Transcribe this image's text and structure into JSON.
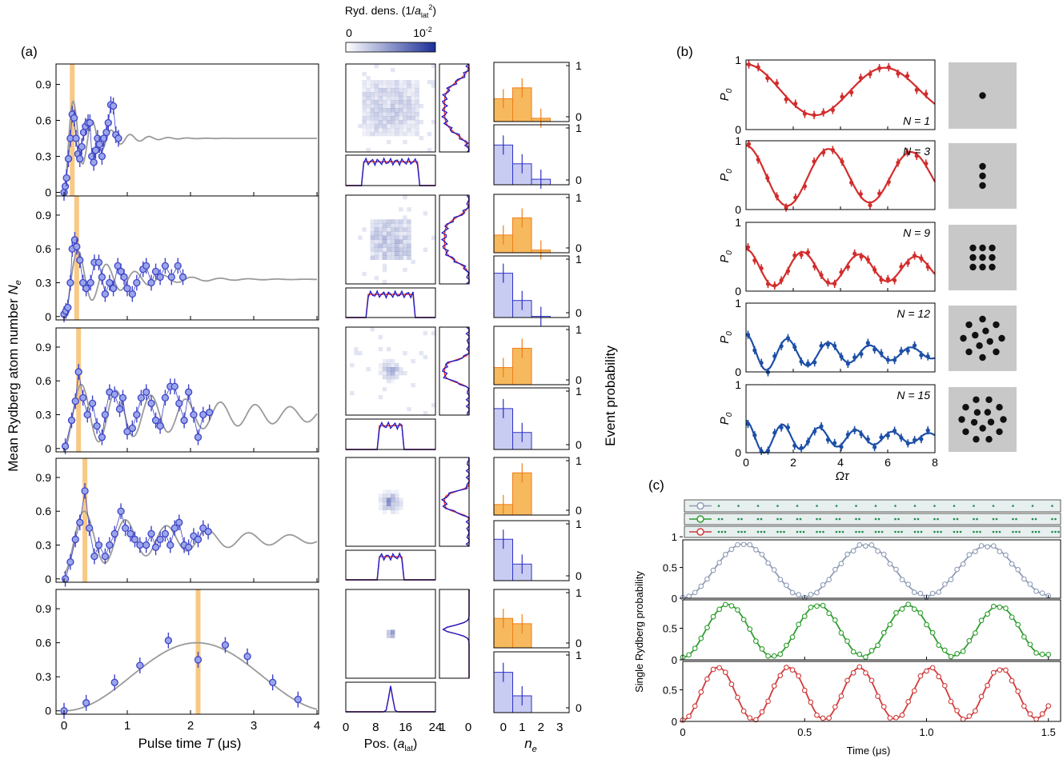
{
  "labels": {
    "panel_a": "(a)",
    "panel_b": "(b)",
    "panel_c": "(c)",
    "a_ylabel_main": "Mean Rydberg atom number ",
    "a_ylabel_sym": "N",
    "a_ylabel_sub": "e",
    "a_xlabel_main": "Pulse time ",
    "a_xlabel_sym": "T",
    "a_xlabel_unit": " (μs)",
    "colorbar_title": "Ryd. dens. (1/",
    "colorbar_title_sym": "a",
    "colorbar_title_sub": "lat",
    "colorbar_title_sup": "2",
    "colorbar_title_end": ")",
    "colorbar_min": "0",
    "colorbar_max_base": "10",
    "colorbar_max_exp": "-2",
    "pos_label": "Pos. (",
    "pos_label_sym": "a",
    "pos_label_sub": "lat",
    "pos_label_end": ")",
    "ne_label": "n",
    "ne_label_sub": "e",
    "event_prob_label": "Event probability",
    "b_ylabel": "P",
    "b_ylabel_sub": "0",
    "b_xlabel": "Ωτ",
    "c_ylabel": "Single Rydberg probability",
    "c_xlabel": "Time (μs)"
  },
  "colors": {
    "blue_points": "#3f44c8",
    "marker_fill": "#9aa6ea",
    "gray_curve": "#9a9a9a",
    "orange_band": "#f7c070",
    "orange_bar": "#f6b95e",
    "orange_edge": "#f07e16",
    "blue_bar": "#c8cbf2",
    "blue_bar_edge": "#3032c8",
    "red_line": "#ef2d23",
    "blue_line": "#2020c8",
    "b_red": "#d32c2c",
    "b_blue": "#1d4fa6",
    "c_gray": "#8f9db6",
    "c_green": "#2e9e2e",
    "c_red": "#d13a3a",
    "tile_gray": "#c8c8c8"
  },
  "chart_data": [
    {
      "type": "scatter",
      "panel": "a-1",
      "xlim": [
        0,
        4
      ],
      "ylim": [
        -0.03,
        1.07
      ],
      "xticks": [
        0,
        1,
        2,
        3,
        4
      ],
      "yticks": [
        0,
        0.3,
        0.6,
        0.9
      ],
      "ytick_labels": [
        "0",
        "0.3",
        "0.6",
        "0.9"
      ],
      "highlight_time": 0.13,
      "x": [
        0.0,
        0.02,
        0.04,
        0.07,
        0.1,
        0.13,
        0.16,
        0.19,
        0.22,
        0.25,
        0.28,
        0.31,
        0.34,
        0.38,
        0.41,
        0.44,
        0.47,
        0.5,
        0.53,
        0.56,
        0.6,
        0.63,
        0.67,
        0.7,
        0.74,
        0.78,
        0.82,
        0.86
      ],
      "y": [
        0.0,
        0.05,
        0.12,
        0.28,
        0.45,
        0.65,
        0.62,
        0.45,
        0.32,
        0.28,
        0.38,
        0.5,
        0.55,
        0.58,
        0.58,
        0.3,
        0.25,
        0.35,
        0.45,
        0.4,
        0.3,
        0.45,
        0.5,
        0.58,
        0.73,
        0.72,
        0.48,
        0.45
      ],
      "yerr": 0.07,
      "curve": {
        "baseline": 0.45,
        "amplitude": 0.45,
        "period": 0.3,
        "decay": 0.4,
        "start_slope": true
      }
    },
    {
      "type": "scatter",
      "panel": "a-2",
      "xlim": [
        0,
        4
      ],
      "ylim": [
        -0.03,
        1.07
      ],
      "xticks": [
        0,
        1,
        2,
        3,
        4
      ],
      "yticks": [
        0,
        0.3,
        0.6,
        0.9
      ],
      "ytick_labels": [
        "0",
        "0.3",
        "0.6",
        "0.9"
      ],
      "highlight_time": 0.2,
      "x": [
        0.0,
        0.03,
        0.06,
        0.1,
        0.13,
        0.17,
        0.2,
        0.25,
        0.3,
        0.35,
        0.42,
        0.48,
        0.55,
        0.6,
        0.65,
        0.72,
        0.78,
        0.85,
        0.9,
        0.95,
        1.0,
        1.08,
        1.15,
        1.25,
        1.3,
        1.38,
        1.45,
        1.52,
        1.6,
        1.7,
        1.8,
        1.88
      ],
      "y": [
        0.02,
        0.05,
        0.08,
        0.3,
        0.6,
        0.68,
        0.62,
        0.5,
        0.3,
        0.25,
        0.3,
        0.48,
        0.48,
        0.35,
        0.2,
        0.3,
        0.25,
        0.45,
        0.4,
        0.35,
        0.25,
        0.2,
        0.3,
        0.42,
        0.45,
        0.3,
        0.4,
        0.35,
        0.45,
        0.35,
        0.45,
        0.35
      ],
      "yerr": 0.07,
      "curve": {
        "baseline": 0.33,
        "amplitude": 0.35,
        "period": 0.45,
        "decay": 0.7,
        "start_slope": true
      }
    },
    {
      "type": "scatter",
      "panel": "a-3",
      "xlim": [
        0,
        4
      ],
      "ylim": [
        -0.03,
        1.07
      ],
      "xticks": [
        0,
        1,
        2,
        3,
        4
      ],
      "yticks": [
        0,
        0.3,
        0.6,
        0.9
      ],
      "ytick_labels": [
        "0",
        "0.3",
        "0.6",
        "0.9"
      ],
      "highlight_time": 0.23,
      "x": [
        0.02,
        0.12,
        0.18,
        0.23,
        0.3,
        0.37,
        0.45,
        0.52,
        0.6,
        0.65,
        0.72,
        0.8,
        0.88,
        0.93,
        1.0,
        1.08,
        1.15,
        1.22,
        1.3,
        1.38,
        1.45,
        1.52,
        1.6,
        1.68,
        1.75,
        1.82,
        1.9,
        1.97,
        2.05,
        2.12,
        2.2,
        2.3
      ],
      "y": [
        0.02,
        0.25,
        0.42,
        0.68,
        0.45,
        0.3,
        0.4,
        0.2,
        0.1,
        0.3,
        0.5,
        0.48,
        0.35,
        0.45,
        0.15,
        0.18,
        0.3,
        0.45,
        0.5,
        0.4,
        0.25,
        0.2,
        0.45,
        0.55,
        0.55,
        0.4,
        0.25,
        0.5,
        0.3,
        0.1,
        0.3,
        0.32
      ],
      "yerr": 0.07,
      "curve": {
        "baseline": 0.3,
        "amplitude": 0.3,
        "period": 0.55,
        "decay": 2.5,
        "start_slope": true
      }
    },
    {
      "type": "scatter",
      "panel": "a-4",
      "xlim": [
        0,
        4
      ],
      "ylim": [
        -0.03,
        1.07
      ],
      "xticks": [
        0,
        1,
        2,
        3,
        4
      ],
      "yticks": [
        0,
        0.3,
        0.6,
        0.9
      ],
      "ytick_labels": [
        "0",
        "0.3",
        "0.6",
        "0.9"
      ],
      "highlight_time": 0.33,
      "x": [
        0.02,
        0.1,
        0.18,
        0.25,
        0.33,
        0.4,
        0.48,
        0.55,
        0.65,
        0.72,
        0.8,
        0.9,
        0.97,
        1.05,
        1.12,
        1.2,
        1.3,
        1.38,
        1.45,
        1.52,
        1.6,
        1.68,
        1.75,
        1.82,
        1.9,
        1.97,
        2.05,
        2.12,
        2.2,
        2.28
      ],
      "y": [
        0.0,
        0.15,
        0.35,
        0.5,
        0.78,
        0.45,
        0.2,
        0.3,
        0.2,
        0.3,
        0.4,
        0.6,
        0.45,
        0.4,
        0.35,
        0.3,
        0.3,
        0.4,
        0.28,
        0.35,
        0.4,
        0.3,
        0.45,
        0.5,
        0.3,
        0.28,
        0.38,
        0.35,
        0.45,
        0.42
      ],
      "yerr": 0.07,
      "curve": {
        "baseline": 0.35,
        "amplitude": 0.3,
        "period": 0.65,
        "decay": 1.8,
        "start_slope": true
      }
    },
    {
      "type": "scatter",
      "panel": "a-5",
      "xlim": [
        0,
        4
      ],
      "ylim": [
        -0.03,
        1.07
      ],
      "xticks": [
        0,
        1,
        2,
        3,
        4
      ],
      "yticks": [
        0,
        0.3,
        0.6,
        0.9
      ],
      "ytick_labels": [
        "0",
        "0.3",
        "0.6",
        "0.9"
      ],
      "highlight_time": 2.12,
      "x": [
        0.0,
        0.35,
        0.8,
        1.2,
        1.65,
        2.12,
        2.55,
        2.9,
        3.3,
        3.7
      ],
      "y": [
        0.0,
        0.07,
        0.25,
        0.4,
        0.62,
        0.45,
        0.58,
        0.48,
        0.25,
        0.1
      ],
      "yerr": 0.07,
      "curve": {
        "type": "sine_hump",
        "peak": 0.6,
        "peak_x": 2.05,
        "width": 4.2
      }
    },
    {
      "type": "heatmap",
      "panel": "density",
      "colorbar_range": [
        0,
        0.01
      ],
      "sizes": [
        [
          0.2,
          0.8
        ],
        [
          0.25,
          0.75
        ],
        [
          0.37,
          0.63
        ],
        [
          0.38,
          0.62
        ],
        [
          0.45,
          0.55
        ]
      ],
      "intensities": [
        0.28,
        0.35,
        0.45,
        0.6,
        0.9
      ]
    },
    {
      "type": "line",
      "panel": "profiles",
      "pos_ticks": [
        0,
        8,
        16,
        24
      ],
      "rot_ticks": [
        1,
        0
      ]
    },
    {
      "type": "bar",
      "panel": "event-probability",
      "categories": [
        0,
        1,
        2,
        3
      ],
      "yticks": [
        0,
        1
      ],
      "orange": [
        [
          0.42,
          0.62,
          0.06,
          0.0
        ],
        [
          0.33,
          0.65,
          0.05,
          0.0
        ],
        [
          0.32,
          0.68,
          0.0,
          0.0
        ],
        [
          0.2,
          0.8,
          0.0,
          0.0
        ],
        [
          0.55,
          0.45,
          0.0,
          0.0
        ]
      ],
      "blue": [
        [
          0.72,
          0.38,
          0.1,
          0.0
        ],
        [
          0.78,
          0.3,
          0.02,
          0.0
        ],
        [
          0.72,
          0.3,
          0.0,
          0.0
        ],
        [
          0.75,
          0.3,
          0.0,
          0.0
        ],
        [
          0.72,
          0.3,
          0.0,
          0.0
        ]
      ]
    },
    {
      "type": "scatter",
      "panel": "b",
      "xlim": [
        0,
        8
      ],
      "ylim": [
        0,
        1.0
      ],
      "xticks": [
        0,
        2,
        4,
        6,
        8
      ],
      "yticks": [
        0,
        1
      ],
      "series": [
        {
          "name": "N = 1",
          "color": "red",
          "period": 5.9,
          "amp": 0.38,
          "baseline": 0.56,
          "decay": 40,
          "dots": 20,
          "layout": "one"
        },
        {
          "name": "N = 3",
          "color": "red",
          "period": 3.5,
          "amp": 0.45,
          "baseline": 0.48,
          "decay": 30,
          "dots": 20,
          "layout": "three"
        },
        {
          "name": "N = 9",
          "color": "red",
          "period": 2.4,
          "amp": 0.28,
          "baseline": 0.33,
          "decay": 15,
          "dots": 28,
          "layout": "nine"
        },
        {
          "name": "N = 12",
          "color": "blue",
          "period": 1.75,
          "amp": 0.28,
          "baseline": 0.27,
          "decay": 6,
          "dots": 28,
          "layout": "twelve"
        },
        {
          "name": "N = 15",
          "color": "blue",
          "period": 1.55,
          "amp": 0.25,
          "baseline": 0.22,
          "decay": 6,
          "dots": 28,
          "layout": "fifteen"
        }
      ]
    },
    {
      "type": "line",
      "panel": "c",
      "xlim": [
        0,
        1.55
      ],
      "ylim": [
        0,
        1.0
      ],
      "xticks": [
        0,
        0.5,
        1,
        1.5
      ],
      "xtick_labels": [
        "0",
        "0.5",
        "1.0",
        "1.5"
      ],
      "yticks": [
        0,
        0.5,
        1
      ],
      "ytick_labels": [
        "0",
        "0.5",
        "1"
      ],
      "series": [
        {
          "color": "gray",
          "period": 0.5,
          "amp": 0.44,
          "baseline": 0.45,
          "decay": 15,
          "dots": 60
        },
        {
          "color": "green",
          "period": 0.37,
          "amp": 0.42,
          "baseline": 0.46,
          "decay": 18,
          "dots": 60
        },
        {
          "color": "red",
          "period": 0.29,
          "amp": 0.42,
          "baseline": 0.44,
          "decay": 20,
          "dots": 60
        }
      ]
    }
  ]
}
